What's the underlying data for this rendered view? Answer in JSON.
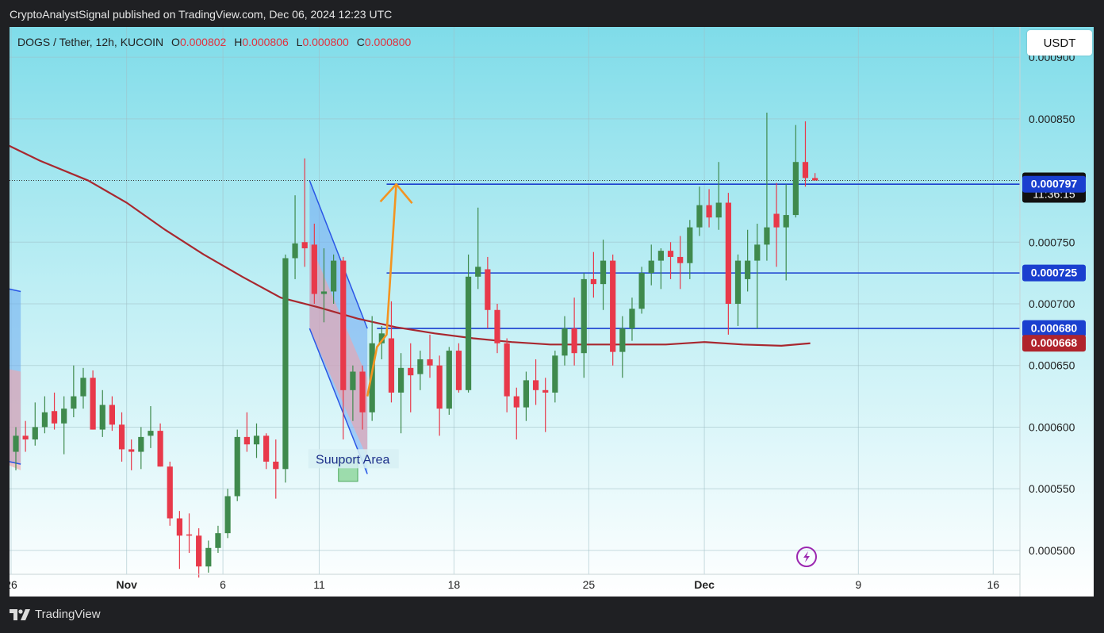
{
  "header": {
    "published_by": "CryptoAnalystSignal published on TradingView.com, Dec 06, 2024 12:23 UTC"
  },
  "legend": {
    "symbol": "DOGS / Tether, 12h, KUCOIN",
    "o_label": "O",
    "o": "0.000802",
    "h_label": "H",
    "h": "0.000806",
    "l_label": "L",
    "l": "0.000800",
    "c_label": "C",
    "c": "0.000800"
  },
  "currency_button": "USDT",
  "footer": {
    "brand": "TradingView"
  },
  "annotation": {
    "support_label": "Suuport Area"
  },
  "colors": {
    "up": "#3f8a4d",
    "down": "#e8394a",
    "ma": "#a8282f",
    "level": "#1a3fcf",
    "bg_top": "#7fdce9",
    "bg_bottom": "#ffffff",
    "arrow": "#f39421"
  },
  "chart_data": {
    "type": "candlestick",
    "timeframe": "12h",
    "y_axis": {
      "min": 0.00048,
      "max": 0.00092,
      "ticks": [
        "0.000900",
        "0.000850",
        "0.000750",
        "0.000700",
        "0.000650",
        "0.000600",
        "0.000550",
        "0.000500"
      ]
    },
    "x_axis": {
      "ticks": [
        {
          "label": "26",
          "date": "2024-10-26"
        },
        {
          "label": "Nov",
          "date": "2024-11-01"
        },
        {
          "label": "6",
          "date": "2024-11-06"
        },
        {
          "label": "11",
          "date": "2024-11-11"
        },
        {
          "label": "18",
          "date": "2024-11-18"
        },
        {
          "label": "25",
          "date": "2024-11-25"
        },
        {
          "label": "Dec",
          "date": "2024-12-01"
        },
        {
          "label": "9",
          "date": "2024-12-09"
        },
        {
          "label": "16",
          "date": "2024-12-16"
        }
      ]
    },
    "price_tags": [
      {
        "value": "0.000800",
        "sub": "11:36:15",
        "kind": "last"
      },
      {
        "value": "0.000797",
        "kind": "level"
      },
      {
        "value": "0.000725",
        "kind": "level"
      },
      {
        "value": "0.000680",
        "kind": "level"
      },
      {
        "value": "0.000668",
        "kind": "ma"
      }
    ],
    "horizontal_levels": [
      {
        "value": 0.000797,
        "from": "2024-11-14T12",
        "to": "end"
      },
      {
        "value": 0.000725,
        "from": "2024-11-14T12",
        "to": "end"
      },
      {
        "value": 0.00068,
        "from": "2024-11-14T00",
        "to": "end"
      }
    ],
    "last_price": 0.0008,
    "candles": [
      {
        "t": "2024-10-26T00",
        "o": 0.00058,
        "h": 0.0006,
        "l": 0.000565,
        "c": 0.000593
      },
      {
        "t": "2024-10-26T12",
        "o": 0.000593,
        "h": 0.000605,
        "l": 0.00058,
        "c": 0.00059
      },
      {
        "t": "2024-10-27T00",
        "o": 0.00059,
        "h": 0.00062,
        "l": 0.000585,
        "c": 0.0006
      },
      {
        "t": "2024-10-27T12",
        "o": 0.0006,
        "h": 0.000625,
        "l": 0.000595,
        "c": 0.000612
      },
      {
        "t": "2024-10-28T00",
        "o": 0.000613,
        "h": 0.000628,
        "l": 0.000598,
        "c": 0.000603
      },
      {
        "t": "2024-10-28T12",
        "o": 0.000603,
        "h": 0.000625,
        "l": 0.000578,
        "c": 0.000615
      },
      {
        "t": "2024-10-29T00",
        "o": 0.000615,
        "h": 0.00065,
        "l": 0.000608,
        "c": 0.000625
      },
      {
        "t": "2024-10-29T12",
        "o": 0.000625,
        "h": 0.000648,
        "l": 0.000615,
        "c": 0.00064
      },
      {
        "t": "2024-10-30T00",
        "o": 0.00064,
        "h": 0.000646,
        "l": 0.000598,
        "c": 0.000598
      },
      {
        "t": "2024-10-30T12",
        "o": 0.000598,
        "h": 0.00063,
        "l": 0.000592,
        "c": 0.000618
      },
      {
        "t": "2024-10-31T00",
        "o": 0.000618,
        "h": 0.000625,
        "l": 0.000597,
        "c": 0.000602
      },
      {
        "t": "2024-10-31T12",
        "o": 0.000602,
        "h": 0.000612,
        "l": 0.000572,
        "c": 0.000582
      },
      {
        "t": "2024-11-01T00",
        "o": 0.000582,
        "h": 0.00059,
        "l": 0.000565,
        "c": 0.00058
      },
      {
        "t": "2024-11-01T12",
        "o": 0.00058,
        "h": 0.0006,
        "l": 0.000566,
        "c": 0.000592
      },
      {
        "t": "2024-11-02T00",
        "o": 0.000593,
        "h": 0.000617,
        "l": 0.000583,
        "c": 0.000597
      },
      {
        "t": "2024-11-02T12",
        "o": 0.000597,
        "h": 0.000603,
        "l": 0.000568,
        "c": 0.000568
      },
      {
        "t": "2024-11-03T00",
        "o": 0.000568,
        "h": 0.000572,
        "l": 0.00052,
        "c": 0.000526
      },
      {
        "t": "2024-11-03T12",
        "o": 0.000526,
        "h": 0.000532,
        "l": 0.000485,
        "c": 0.000512
      },
      {
        "t": "2024-11-04T00",
        "o": 0.000513,
        "h": 0.00053,
        "l": 0.000498,
        "c": 0.000512
      },
      {
        "t": "2024-11-04T12",
        "o": 0.000512,
        "h": 0.000518,
        "l": 0.000478,
        "c": 0.000487
      },
      {
        "t": "2024-11-05T00",
        "o": 0.000487,
        "h": 0.000508,
        "l": 0.000482,
        "c": 0.000502
      },
      {
        "t": "2024-11-05T12",
        "o": 0.000502,
        "h": 0.00052,
        "l": 0.000498,
        "c": 0.000514
      },
      {
        "t": "2024-11-06T00",
        "o": 0.000514,
        "h": 0.00055,
        "l": 0.00051,
        "c": 0.000544
      },
      {
        "t": "2024-11-06T12",
        "o": 0.000544,
        "h": 0.000598,
        "l": 0.00054,
        "c": 0.000592
      },
      {
        "t": "2024-11-07T00",
        "o": 0.000592,
        "h": 0.000612,
        "l": 0.00058,
        "c": 0.000586
      },
      {
        "t": "2024-11-07T12",
        "o": 0.000586,
        "h": 0.000603,
        "l": 0.000575,
        "c": 0.000593
      },
      {
        "t": "2024-11-08T00",
        "o": 0.000593,
        "h": 0.000595,
        "l": 0.000566,
        "c": 0.000572
      },
      {
        "t": "2024-11-08T12",
        "o": 0.000572,
        "h": 0.00059,
        "l": 0.000542,
        "c": 0.000566
      },
      {
        "t": "2024-11-09T00",
        "o": 0.000566,
        "h": 0.00074,
        "l": 0.000555,
        "c": 0.000737
      },
      {
        "t": "2024-11-09T12",
        "o": 0.000737,
        "h": 0.000788,
        "l": 0.00072,
        "c": 0.000749
      },
      {
        "t": "2024-11-10T00",
        "o": 0.00075,
        "h": 0.000818,
        "l": 0.00073,
        "c": 0.000745
      },
      {
        "t": "2024-11-10T12",
        "o": 0.000748,
        "h": 0.000765,
        "l": 0.0007,
        "c": 0.000708
      },
      {
        "t": "2024-11-11T00",
        "o": 0.000708,
        "h": 0.000745,
        "l": 0.000685,
        "c": 0.00071
      },
      {
        "t": "2024-11-11T12",
        "o": 0.00071,
        "h": 0.00074,
        "l": 0.0007,
        "c": 0.000735
      },
      {
        "t": "2024-11-12T00",
        "o": 0.000735,
        "h": 0.000738,
        "l": 0.00059,
        "c": 0.00063
      },
      {
        "t": "2024-11-12T12",
        "o": 0.00063,
        "h": 0.00065,
        "l": 0.000605,
        "c": 0.000645
      },
      {
        "t": "2024-11-13T00",
        "o": 0.000645,
        "h": 0.00065,
        "l": 0.000598,
        "c": 0.000612
      },
      {
        "t": "2024-11-13T12",
        "o": 0.000612,
        "h": 0.00069,
        "l": 0.000605,
        "c": 0.000668
      },
      {
        "t": "2024-11-14T00",
        "o": 0.000668,
        "h": 0.000682,
        "l": 0.000655,
        "c": 0.000676
      },
      {
        "t": "2024-11-14T12",
        "o": 0.000672,
        "h": 0.000702,
        "l": 0.00062,
        "c": 0.000628
      },
      {
        "t": "2024-11-15T00",
        "o": 0.000628,
        "h": 0.00066,
        "l": 0.000595,
        "c": 0.000648
      },
      {
        "t": "2024-11-15T12",
        "o": 0.000648,
        "h": 0.000668,
        "l": 0.000612,
        "c": 0.000642
      },
      {
        "t": "2024-11-16T00",
        "o": 0.000643,
        "h": 0.000662,
        "l": 0.00063,
        "c": 0.000655
      },
      {
        "t": "2024-11-16T12",
        "o": 0.000655,
        "h": 0.000675,
        "l": 0.00064,
        "c": 0.00065
      },
      {
        "t": "2024-11-17T00",
        "o": 0.00065,
        "h": 0.000658,
        "l": 0.000593,
        "c": 0.000615
      },
      {
        "t": "2024-11-17T12",
        "o": 0.000615,
        "h": 0.000665,
        "l": 0.00061,
        "c": 0.000662
      },
      {
        "t": "2024-11-18T00",
        "o": 0.000662,
        "h": 0.000668,
        "l": 0.000628,
        "c": 0.00063
      },
      {
        "t": "2024-11-18T12",
        "o": 0.00063,
        "h": 0.00074,
        "l": 0.000628,
        "c": 0.000722
      },
      {
        "t": "2024-11-19T00",
        "o": 0.000722,
        "h": 0.000778,
        "l": 0.000712,
        "c": 0.00073
      },
      {
        "t": "2024-11-19T12",
        "o": 0.000728,
        "h": 0.000738,
        "l": 0.00068,
        "c": 0.000695
      },
      {
        "t": "2024-11-20T00",
        "o": 0.000695,
        "h": 0.0007,
        "l": 0.00066,
        "c": 0.000668
      },
      {
        "t": "2024-11-20T12",
        "o": 0.000668,
        "h": 0.000672,
        "l": 0.000612,
        "c": 0.000625
      },
      {
        "t": "2024-11-21T00",
        "o": 0.000625,
        "h": 0.000632,
        "l": 0.00059,
        "c": 0.000616
      },
      {
        "t": "2024-11-21T12",
        "o": 0.000616,
        "h": 0.000645,
        "l": 0.000605,
        "c": 0.000638
      },
      {
        "t": "2024-11-22T00",
        "o": 0.000638,
        "h": 0.000655,
        "l": 0.000618,
        "c": 0.00063
      },
      {
        "t": "2024-11-22T12",
        "o": 0.00063,
        "h": 0.00064,
        "l": 0.000596,
        "c": 0.000628
      },
      {
        "t": "2024-11-23T00",
        "o": 0.000628,
        "h": 0.000662,
        "l": 0.00062,
        "c": 0.000658
      },
      {
        "t": "2024-11-23T12",
        "o": 0.000658,
        "h": 0.00069,
        "l": 0.00065,
        "c": 0.00068
      },
      {
        "t": "2024-11-24T00",
        "o": 0.00068,
        "h": 0.000705,
        "l": 0.00065,
        "c": 0.00066
      },
      {
        "t": "2024-11-24T12",
        "o": 0.00066,
        "h": 0.000725,
        "l": 0.00064,
        "c": 0.00072
      },
      {
        "t": "2024-11-25T00",
        "o": 0.00072,
        "h": 0.000742,
        "l": 0.000705,
        "c": 0.000716
      },
      {
        "t": "2024-11-25T12",
        "o": 0.000716,
        "h": 0.000752,
        "l": 0.000695,
        "c": 0.000735
      },
      {
        "t": "2024-11-26T00",
        "o": 0.000735,
        "h": 0.00074,
        "l": 0.00065,
        "c": 0.000661
      },
      {
        "t": "2024-11-26T12",
        "o": 0.000661,
        "h": 0.00069,
        "l": 0.00064,
        "c": 0.00068
      },
      {
        "t": "2024-11-27T00",
        "o": 0.00068,
        "h": 0.000705,
        "l": 0.00067,
        "c": 0.000696
      },
      {
        "t": "2024-11-27T12",
        "o": 0.000696,
        "h": 0.00073,
        "l": 0.000692,
        "c": 0.000725
      },
      {
        "t": "2024-11-28T00",
        "o": 0.000725,
        "h": 0.000748,
        "l": 0.000715,
        "c": 0.000735
      },
      {
        "t": "2024-11-28T12",
        "o": 0.000735,
        "h": 0.000745,
        "l": 0.000712,
        "c": 0.000743
      },
      {
        "t": "2024-11-29T00",
        "o": 0.000743,
        "h": 0.00075,
        "l": 0.00072,
        "c": 0.000738
      },
      {
        "t": "2024-11-29T12",
        "o": 0.000738,
        "h": 0.000755,
        "l": 0.000712,
        "c": 0.000733
      },
      {
        "t": "2024-11-30T00",
        "o": 0.000733,
        "h": 0.000768,
        "l": 0.00072,
        "c": 0.000762
      },
      {
        "t": "2024-11-30T12",
        "o": 0.000762,
        "h": 0.000795,
        "l": 0.000755,
        "c": 0.00078
      },
      {
        "t": "2024-12-01T00",
        "o": 0.00078,
        "h": 0.000793,
        "l": 0.000762,
        "c": 0.00077
      },
      {
        "t": "2024-12-01T12",
        "o": 0.00077,
        "h": 0.000815,
        "l": 0.00076,
        "c": 0.000782
      },
      {
        "t": "2024-12-02T00",
        "o": 0.000782,
        "h": 0.00079,
        "l": 0.000675,
        "c": 0.0007
      },
      {
        "t": "2024-12-02T12",
        "o": 0.0007,
        "h": 0.00074,
        "l": 0.000682,
        "c": 0.000735
      },
      {
        "t": "2024-12-03T00",
        "o": 0.00072,
        "h": 0.00076,
        "l": 0.00071,
        "c": 0.000735
      },
      {
        "t": "2024-12-03T12",
        "o": 0.000735,
        "h": 0.000765,
        "l": 0.00068,
        "c": 0.000748
      },
      {
        "t": "2024-12-04T00",
        "o": 0.000748,
        "h": 0.000855,
        "l": 0.000735,
        "c": 0.000762
      },
      {
        "t": "2024-12-04T12",
        "o": 0.000773,
        "h": 0.000798,
        "l": 0.00073,
        "c": 0.000762
      },
      {
        "t": "2024-12-05T00",
        "o": 0.000762,
        "h": 0.000797,
        "l": 0.000719,
        "c": 0.000772
      },
      {
        "t": "2024-12-05T12",
        "o": 0.000772,
        "h": 0.000845,
        "l": 0.00077,
        "c": 0.000815
      },
      {
        "t": "2024-12-06T00",
        "o": 0.000815,
        "h": 0.000848,
        "l": 0.000795,
        "c": 0.000802
      },
      {
        "t": "2024-12-06T12",
        "o": 0.000802,
        "h": 0.000806,
        "l": 0.0008,
        "c": 0.0008
      }
    ],
    "moving_average": [
      {
        "t": "2024-10-25T00",
        "v": 0.000835
      },
      {
        "t": "2024-10-27T12",
        "v": 0.000816
      },
      {
        "t": "2024-10-30T00",
        "v": 0.0008
      },
      {
        "t": "2024-11-01T00",
        "v": 0.000782
      },
      {
        "t": "2024-11-03T00",
        "v": 0.00076
      },
      {
        "t": "2024-11-05T00",
        "v": 0.00074
      },
      {
        "t": "2024-11-07T00",
        "v": 0.000722
      },
      {
        "t": "2024-11-09T00",
        "v": 0.000705
      },
      {
        "t": "2024-11-11T00",
        "v": 0.000697
      },
      {
        "t": "2024-11-13T00",
        "v": 0.000688
      },
      {
        "t": "2024-11-15T00",
        "v": 0.000681
      },
      {
        "t": "2024-11-17T00",
        "v": 0.000676
      },
      {
        "t": "2024-11-19T00",
        "v": 0.000672
      },
      {
        "t": "2024-11-21T00",
        "v": 0.000669
      },
      {
        "t": "2024-11-23T00",
        "v": 0.000667
      },
      {
        "t": "2024-11-25T00",
        "v": 0.000667
      },
      {
        "t": "2024-11-27T00",
        "v": 0.000667
      },
      {
        "t": "2024-11-29T00",
        "v": 0.000667
      },
      {
        "t": "2024-12-01T00",
        "v": 0.000669
      },
      {
        "t": "2024-12-03T00",
        "v": 0.000667
      },
      {
        "t": "2024-12-05T00",
        "v": 0.000666
      },
      {
        "t": "2024-12-06T12",
        "v": 0.000668
      }
    ],
    "drawings": {
      "wedge_left": [
        {
          "t": "2024-10-25T00",
          "v": 0.000715
        },
        {
          "t": "2024-10-26T12",
          "v": 0.00071
        },
        {
          "t": "2024-10-26T12",
          "v": 0.00057
        },
        {
          "t": "2024-10-25T00",
          "v": 0.000575
        }
      ],
      "red_left": [
        {
          "t": "2024-10-25T00",
          "v": 0.00065
        },
        {
          "t": "2024-10-26T12",
          "v": 0.000645
        },
        {
          "t": "2024-10-26T12",
          "v": 0.000565
        },
        {
          "t": "2024-10-25T00",
          "v": 0.000575
        }
      ],
      "wedge_main": [
        {
          "t": "2024-11-10T12",
          "v": 0.0008
        },
        {
          "t": "2024-11-13T12",
          "v": 0.00068
        },
        {
          "t": "2024-11-13T12",
          "v": 0.000562
        },
        {
          "t": "2024-11-10T12",
          "v": 0.00068
        }
      ],
      "red_main": [
        {
          "t": "2024-11-10T12",
          "v": 0.00075
        },
        {
          "t": "2024-11-13T12",
          "v": 0.00064
        },
        {
          "t": "2024-11-13T12",
          "v": 0.000575
        },
        {
          "t": "2024-11-10T12",
          "v": 0.00068
        }
      ],
      "support_box": [
        {
          "t": "2024-11-12T00",
          "v": 0.000575
        },
        {
          "t": "2024-11-13T00",
          "v": 0.000556
        }
      ],
      "arrow": [
        {
          "t": "2024-11-13T12",
          "v": 0.000625
        },
        {
          "t": "2024-11-14T00",
          "v": 0.000665
        },
        {
          "t": "2024-11-14T12",
          "v": 0.000675
        },
        {
          "t": "2024-11-15T00",
          "v": 0.000797
        }
      ]
    }
  }
}
